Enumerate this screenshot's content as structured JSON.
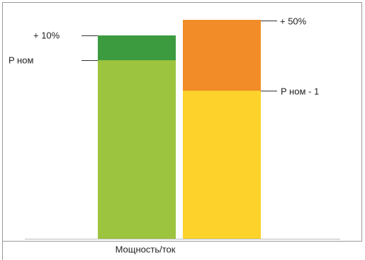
{
  "labels": {
    "left_top": "+ 10%",
    "left_nominal": "P ном",
    "right_top": "+ 50%",
    "right_nominal": "P ном - 1"
  },
  "x_axis_label": "Мощность/ток"
}
